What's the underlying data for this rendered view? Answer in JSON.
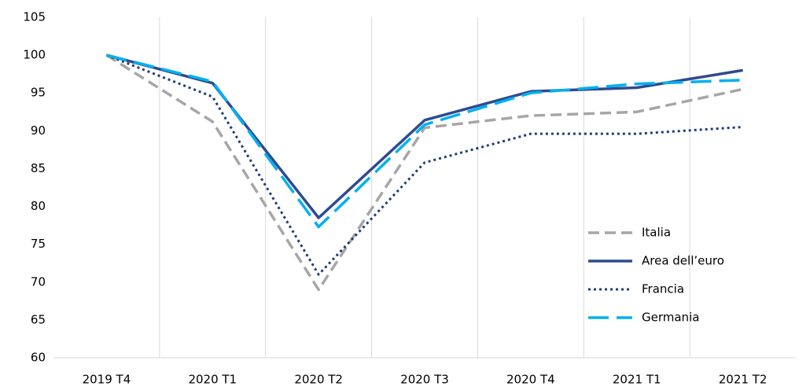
{
  "chart_data": {
    "type": "line",
    "categories": [
      "2019 T4",
      "2020 T1",
      "2020 T2",
      "2020 T3",
      "2020 T4",
      "2021 T1",
      "2021 T2"
    ],
    "series": [
      {
        "name": "Italia",
        "color": "#a6a6a6",
        "style": "dashed",
        "values": [
          100,
          91.2,
          69.0,
          90.4,
          92.0,
          92.5,
          95.5
        ]
      },
      {
        "name": "Area dell’euro",
        "color": "#2f4b8f",
        "style": "solid",
        "values": [
          100,
          96.3,
          78.5,
          91.4,
          95.2,
          95.7,
          98.0
        ]
      },
      {
        "name": "Francia",
        "color": "#1f3d7a",
        "style": "dotted",
        "values": [
          100,
          94.5,
          71.0,
          85.8,
          89.6,
          89.6,
          90.5
        ]
      },
      {
        "name": "Germania",
        "color": "#00b0f0",
        "style": "longdash",
        "values": [
          100,
          96.5,
          77.3,
          90.8,
          95.0,
          96.2,
          96.7
        ]
      }
    ],
    "ylim": [
      60,
      105
    ],
    "yticks": [
      60,
      65,
      70,
      75,
      80,
      85,
      90,
      95,
      100,
      105
    ],
    "grid": "vertical",
    "legend": "lower right"
  }
}
